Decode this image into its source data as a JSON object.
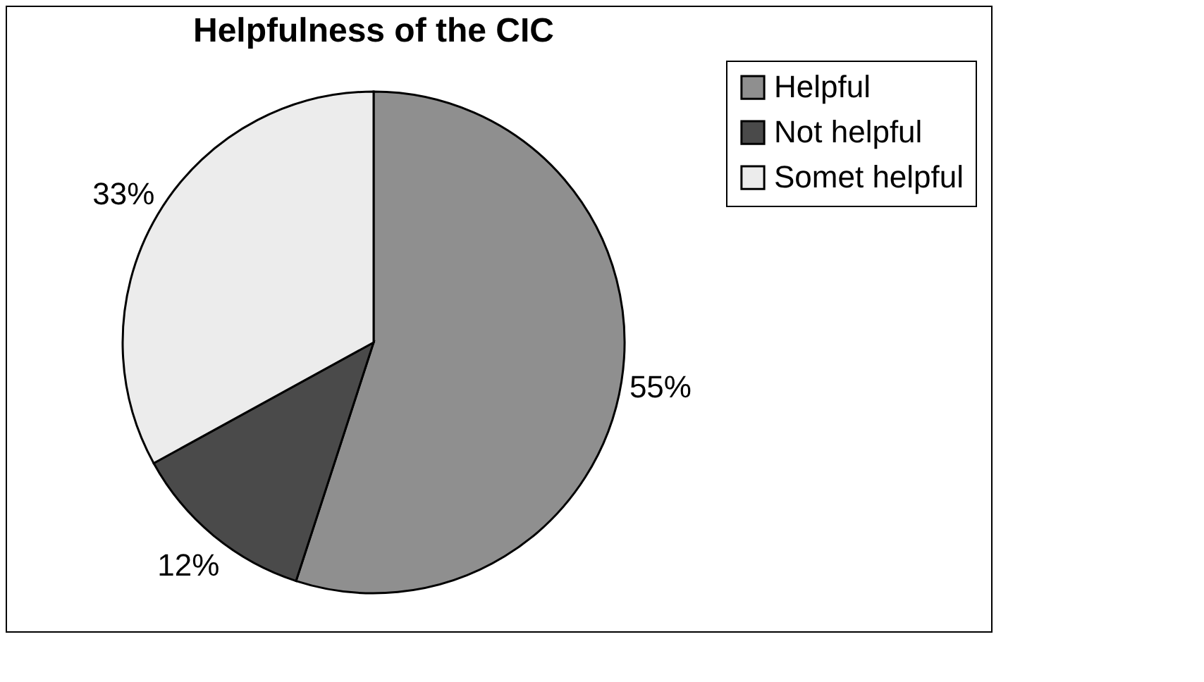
{
  "chart_data": {
    "type": "pie",
    "title": "Helpfulness of the CIC",
    "categories": [
      "Helpful",
      "Not helpful",
      "Somet helpful"
    ],
    "values": [
      55,
      12,
      33
    ],
    "colors": [
      "#8f8f8f",
      "#4a4a4a",
      "#ececec"
    ],
    "value_labels": [
      "55%",
      "12%",
      "33%"
    ],
    "legend": "right"
  }
}
